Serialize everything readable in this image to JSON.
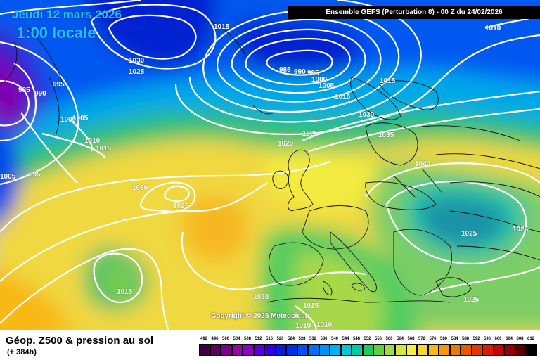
{
  "header": {
    "run_info": "Ensemble GEFS  (Perturbation 8)  -  00 Z du 24/02/2026",
    "date": "Jeudi 12 mars 2026",
    "time": "1:00 locale"
  },
  "copyright": "Copyright © 2026 Meteociel.fr",
  "footer": {
    "title": "Géop. Z500 & pression au sol",
    "subtitle": "(+ 384h)"
  },
  "isobar_labels": [
    "1015",
    "1010",
    "1030",
    "1025",
    "985",
    "990",
    "995",
    "1000",
    "1005",
    "1010",
    "1015",
    "1030",
    "1025",
    "1035",
    "1040",
    "985",
    "990",
    "995",
    "1000",
    "1005",
    "1010",
    "1015",
    "1030",
    "1025",
    "1020",
    "1025",
    "1005",
    "995",
    "1015",
    "1020",
    "1015",
    "1010",
    "1010",
    "1025",
    "1025"
  ],
  "legend_scale": {
    "values": [
      "492",
      "496",
      "500",
      "504",
      "508",
      "512",
      "516",
      "520",
      "524",
      "528",
      "532",
      "536",
      "540",
      "544",
      "548",
      "552",
      "556",
      "560",
      "564",
      "568",
      "572",
      "576",
      "580",
      "584",
      "588",
      "592",
      "596",
      "600",
      "604",
      "608",
      "612"
    ],
    "colors": [
      "#3b0040",
      "#58005e",
      "#7a0085",
      "#9900a8",
      "#8a00c8",
      "#5a00d8",
      "#3000e0",
      "#0a1ad8",
      "#0030e8",
      "#0050f0",
      "#0070f4",
      "#0090f8",
      "#00b0f4",
      "#00c8d8",
      "#00c8a0",
      "#20c860",
      "#60d040",
      "#a0dc40",
      "#d0e840",
      "#f4f040",
      "#f8d830",
      "#f8b818",
      "#f89808",
      "#f07800",
      "#e85800",
      "#e03800",
      "#d81c00",
      "#c00800",
      "#900000",
      "#580000",
      "#000000"
    ]
  }
}
